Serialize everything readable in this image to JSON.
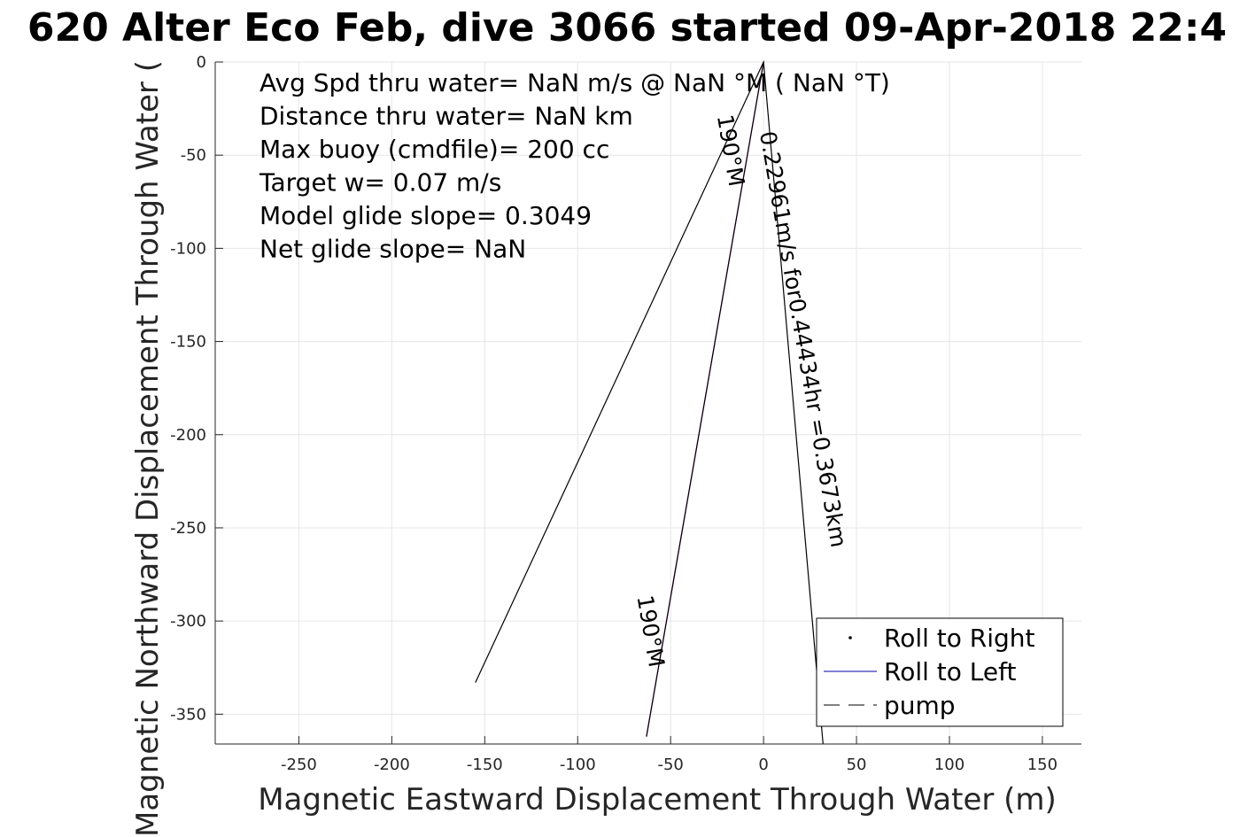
{
  "chart_data": {
    "type": "line",
    "title": "620 Alter Eco Feb, dive 3066 started 09-Apr-2018 22:4",
    "xlabel": "Magnetic Eastward Displacement Through Water (m)",
    "ylabel": "Magnetic Northward Displacement Through Water (",
    "xlim": [
      -295,
      171
    ],
    "ylim": [
      -366,
      0
    ],
    "xticks": [
      -250,
      -200,
      -150,
      -100,
      -50,
      0,
      50,
      100,
      150
    ],
    "yticks": [
      0,
      -50,
      -100,
      -150,
      -200,
      -250,
      -300,
      -350
    ],
    "xtick_labels": [
      "-250",
      "-200",
      "-150",
      "-100",
      "-50",
      "0",
      "50",
      "100",
      "150"
    ],
    "ytick_labels": [
      "0",
      "-50",
      "-100",
      "-150",
      "-200",
      "-250",
      "-300",
      "-350"
    ],
    "grid": true,
    "stats": [
      "Avg Spd thru water=   NaN m/s @   NaN °M (  NaN °T)",
      "Distance thru water=   NaN km",
      "Max buoy (cmdfile)= 200 cc",
      "Target w= 0.07 m/s",
      "Model glide slope= 0.3049",
      "Net glide slope=    NaN"
    ],
    "series": [
      {
        "name": "Roll to Right",
        "style": "dot",
        "color": "#000000",
        "x": [],
        "y": []
      },
      {
        "name": "Roll to Left",
        "style": "solid",
        "color": "#0000aa",
        "x": [],
        "y": []
      },
      {
        "name": "pump",
        "style": "dashed",
        "color": "#000000",
        "x": [],
        "y": []
      }
    ],
    "track_lines": [
      {
        "color": "#000000",
        "x": [
          -155,
          0,
          32
        ],
        "y": [
          -333,
          0,
          -366
        ]
      },
      {
        "color": "#cc00cc",
        "x": [
          0,
          -63
        ],
        "y": [
          0,
          -362
        ]
      },
      {
        "color": "#000000",
        "x": [
          0,
          -63
        ],
        "y": [
          0,
          -362
        ]
      }
    ],
    "annotations": [
      {
        "text": "0.22961m/s for0.44434hr =0.3673km",
        "x": -2,
        "y": -38,
        "angle": 80.2
      },
      {
        "text": "190°M",
        "x": -25,
        "y": -29,
        "angle": 80.2
      },
      {
        "text": "190°M",
        "x": -68,
        "y": -287,
        "angle": 80.2
      }
    ],
    "legend": {
      "position": "bottom-right",
      "entries": [
        "Roll to Right",
        "Roll to Left",
        "pump"
      ]
    }
  }
}
